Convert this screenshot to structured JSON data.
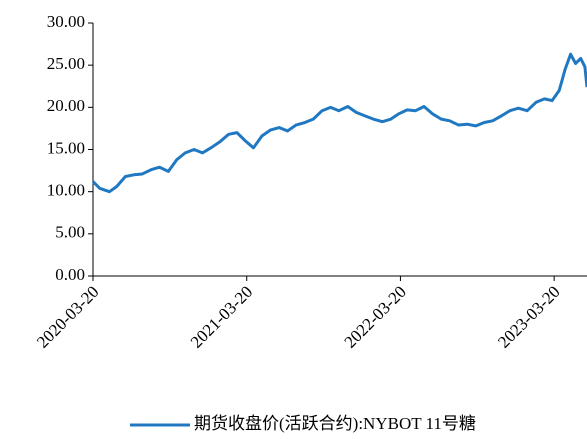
{
  "chart_data": {
    "type": "line",
    "x": [
      "2020-03-20",
      "2020-04-05",
      "2020-04-28",
      "2020-05-15",
      "2020-06-05",
      "2020-06-25",
      "2020-07-15",
      "2020-08-05",
      "2020-08-25",
      "2020-09-15",
      "2020-10-05",
      "2020-10-25",
      "2020-11-15",
      "2020-12-05",
      "2020-12-25",
      "2021-01-15",
      "2021-02-05",
      "2021-02-25",
      "2021-03-15",
      "2021-04-05",
      "2021-04-25",
      "2021-05-15",
      "2021-06-05",
      "2021-06-25",
      "2021-07-15",
      "2021-08-05",
      "2021-08-25",
      "2021-09-15",
      "2021-10-05",
      "2021-10-25",
      "2021-11-15",
      "2021-12-05",
      "2021-12-25",
      "2022-01-15",
      "2022-02-05",
      "2022-02-25",
      "2022-03-15",
      "2022-04-05",
      "2022-04-25",
      "2022-05-15",
      "2022-06-05",
      "2022-06-25",
      "2022-07-15",
      "2022-08-05",
      "2022-08-25",
      "2022-09-15",
      "2022-10-05",
      "2022-10-25",
      "2022-11-15",
      "2022-12-05",
      "2022-12-25",
      "2023-01-15",
      "2023-02-05",
      "2023-02-25",
      "2023-03-15",
      "2023-04-01",
      "2023-04-15",
      "2023-04-28",
      "2023-05-10",
      "2023-05-22",
      "2023-06-01",
      "2023-06-06"
    ],
    "series": [
      {
        "name": "期货收盘价(活跃合约):NYBOT 11号糖",
        "color": "#1f78c1",
        "values": [
          11.2,
          10.4,
          10.0,
          10.6,
          11.8,
          12.0,
          12.1,
          12.6,
          12.9,
          12.4,
          13.8,
          14.6,
          15.0,
          14.6,
          15.2,
          15.9,
          16.8,
          17.0,
          16.1,
          15.2,
          16.6,
          17.3,
          17.6,
          17.2,
          17.9,
          18.2,
          18.6,
          19.6,
          20.0,
          19.6,
          20.1,
          19.4,
          19.0,
          18.6,
          18.3,
          18.6,
          19.2,
          19.7,
          19.6,
          20.1,
          19.2,
          18.6,
          18.4,
          17.9,
          18.0,
          17.8,
          18.2,
          18.4,
          19.0,
          19.6,
          19.9,
          19.6,
          20.6,
          21.0,
          20.8,
          22.0,
          24.5,
          26.3,
          25.2,
          25.8,
          24.8,
          22.4
        ]
      }
    ],
    "xlim": [
      "2020-03-20",
      "2023-06-06"
    ],
    "xticks": [
      "2020-03-20",
      "2021-03-20",
      "2022-03-20",
      "2023-03-20"
    ],
    "ylim": [
      0,
      30
    ],
    "yticks": [
      {
        "value": 0,
        "label": "0.00"
      },
      {
        "value": 5,
        "label": "5.00"
      },
      {
        "value": 10,
        "label": "10.00"
      },
      {
        "value": 15,
        "label": "15.00"
      },
      {
        "value": 20,
        "label": "20.00"
      },
      {
        "value": 25,
        "label": "25.00"
      },
      {
        "value": 30,
        "label": "30.00"
      }
    ],
    "legend": "bottom"
  }
}
